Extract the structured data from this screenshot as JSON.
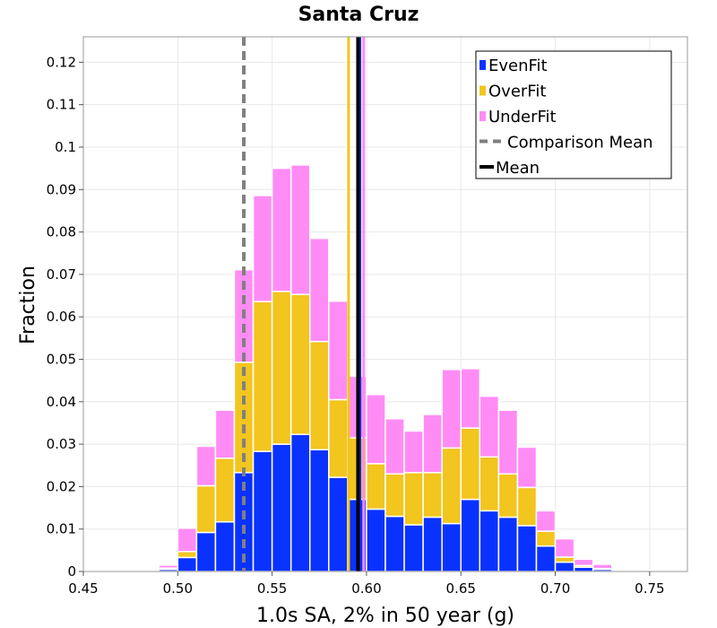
{
  "chart_data": {
    "type": "bar",
    "stacked": true,
    "title": "Santa Cruz",
    "xlabel": "1.0s SA, 2% in 50 year (g)",
    "ylabel": "Fraction",
    "xlim": [
      0.45,
      0.77
    ],
    "ylim": [
      0,
      0.126
    ],
    "bin_width": 0.01,
    "grid": true,
    "legend_position": "top-right",
    "x_ticks": [
      "0.45",
      "0.50",
      "0.55",
      "0.60",
      "0.65",
      "0.70",
      "0.75"
    ],
    "x_tick_values": [
      0.45,
      0.5,
      0.55,
      0.6,
      0.65,
      0.7,
      0.75
    ],
    "y_ticks": [
      "0",
      "0.01",
      "0.02",
      "0.03",
      "0.04",
      "0.05",
      "0.06",
      "0.07",
      "0.08",
      "0.09",
      "0.1",
      "0.11",
      "0.12"
    ],
    "y_tick_values": [
      0,
      0.01,
      0.02,
      0.03,
      0.04,
      0.05,
      0.06,
      0.07,
      0.08,
      0.09,
      0.1,
      0.11,
      0.12
    ],
    "bin_centers": [
      0.475,
      0.485,
      0.495,
      0.505,
      0.515,
      0.525,
      0.535,
      0.545,
      0.555,
      0.565,
      0.575,
      0.585,
      0.595,
      0.605,
      0.615,
      0.625,
      0.635,
      0.645,
      0.655,
      0.665,
      0.675,
      0.685,
      0.695,
      0.705,
      0.715,
      0.725,
      0.735,
      0.745,
      0.755
    ],
    "series": [
      {
        "name": "EvenFit",
        "color": "#0a32ff",
        "values": [
          0.0,
          0.0001,
          0.0005,
          0.0033,
          0.0092,
          0.0117,
          0.0233,
          0.0283,
          0.03,
          0.0323,
          0.0287,
          0.0222,
          0.017,
          0.0147,
          0.013,
          0.011,
          0.0128,
          0.0113,
          0.017,
          0.0143,
          0.0128,
          0.0108,
          0.006,
          0.0022,
          0.001,
          0.0005,
          0.0002,
          0.0001,
          0.0
        ]
      },
      {
        "name": "OverFit",
        "color": "#f2c51f",
        "values": [
          0.0,
          0.0001,
          0.0003,
          0.0014,
          0.011,
          0.015,
          0.026,
          0.0353,
          0.036,
          0.033,
          0.0255,
          0.0183,
          0.0145,
          0.0107,
          0.01,
          0.0123,
          0.0105,
          0.0178,
          0.0168,
          0.0127,
          0.0102,
          0.009,
          0.0035,
          0.0012,
          0.0004,
          0.0002,
          0.0001,
          0.0,
          0.0
        ]
      },
      {
        "name": "UnderFit",
        "color": "#ff8cf5",
        "values": [
          0.0001,
          0.0003,
          0.0007,
          0.0055,
          0.0093,
          0.0113,
          0.0218,
          0.025,
          0.029,
          0.0305,
          0.0243,
          0.0232,
          0.0145,
          0.0163,
          0.013,
          0.0098,
          0.0137,
          0.0185,
          0.014,
          0.0143,
          0.015,
          0.0095,
          0.0048,
          0.0043,
          0.0015,
          0.001,
          0.0003,
          0.0002,
          0.0001
        ]
      }
    ],
    "vertical_lines": [
      {
        "name": "Comparison Mean",
        "x": 0.535,
        "color": "#808080",
        "style": "dashed",
        "in_legend": true
      },
      {
        "name": "OverFit Mean",
        "x": 0.5905,
        "color": "#f2c51f",
        "style": "solid",
        "in_legend": false
      },
      {
        "name": "UnderFit Mean",
        "x": 0.5985,
        "color": "#ff8cf5",
        "style": "solid",
        "in_legend": false
      },
      {
        "name": "EvenFit Mean",
        "x": 0.5965,
        "color": "#0a32ff",
        "style": "solid",
        "in_legend": false
      },
      {
        "name": "Mean",
        "x": 0.5955,
        "color": "#000000",
        "style": "solid",
        "in_legend": true
      }
    ],
    "legend": [
      {
        "label": "EvenFit",
        "color": "#0a32ff",
        "kind": "square"
      },
      {
        "label": "OverFit",
        "color": "#f2c51f",
        "kind": "square"
      },
      {
        "label": "UnderFit",
        "color": "#ff8cf5",
        "kind": "square"
      },
      {
        "label": "Comparison Mean",
        "color": "#808080",
        "kind": "dashed"
      },
      {
        "label": "Mean",
        "color": "#000000",
        "kind": "solid"
      }
    ]
  }
}
